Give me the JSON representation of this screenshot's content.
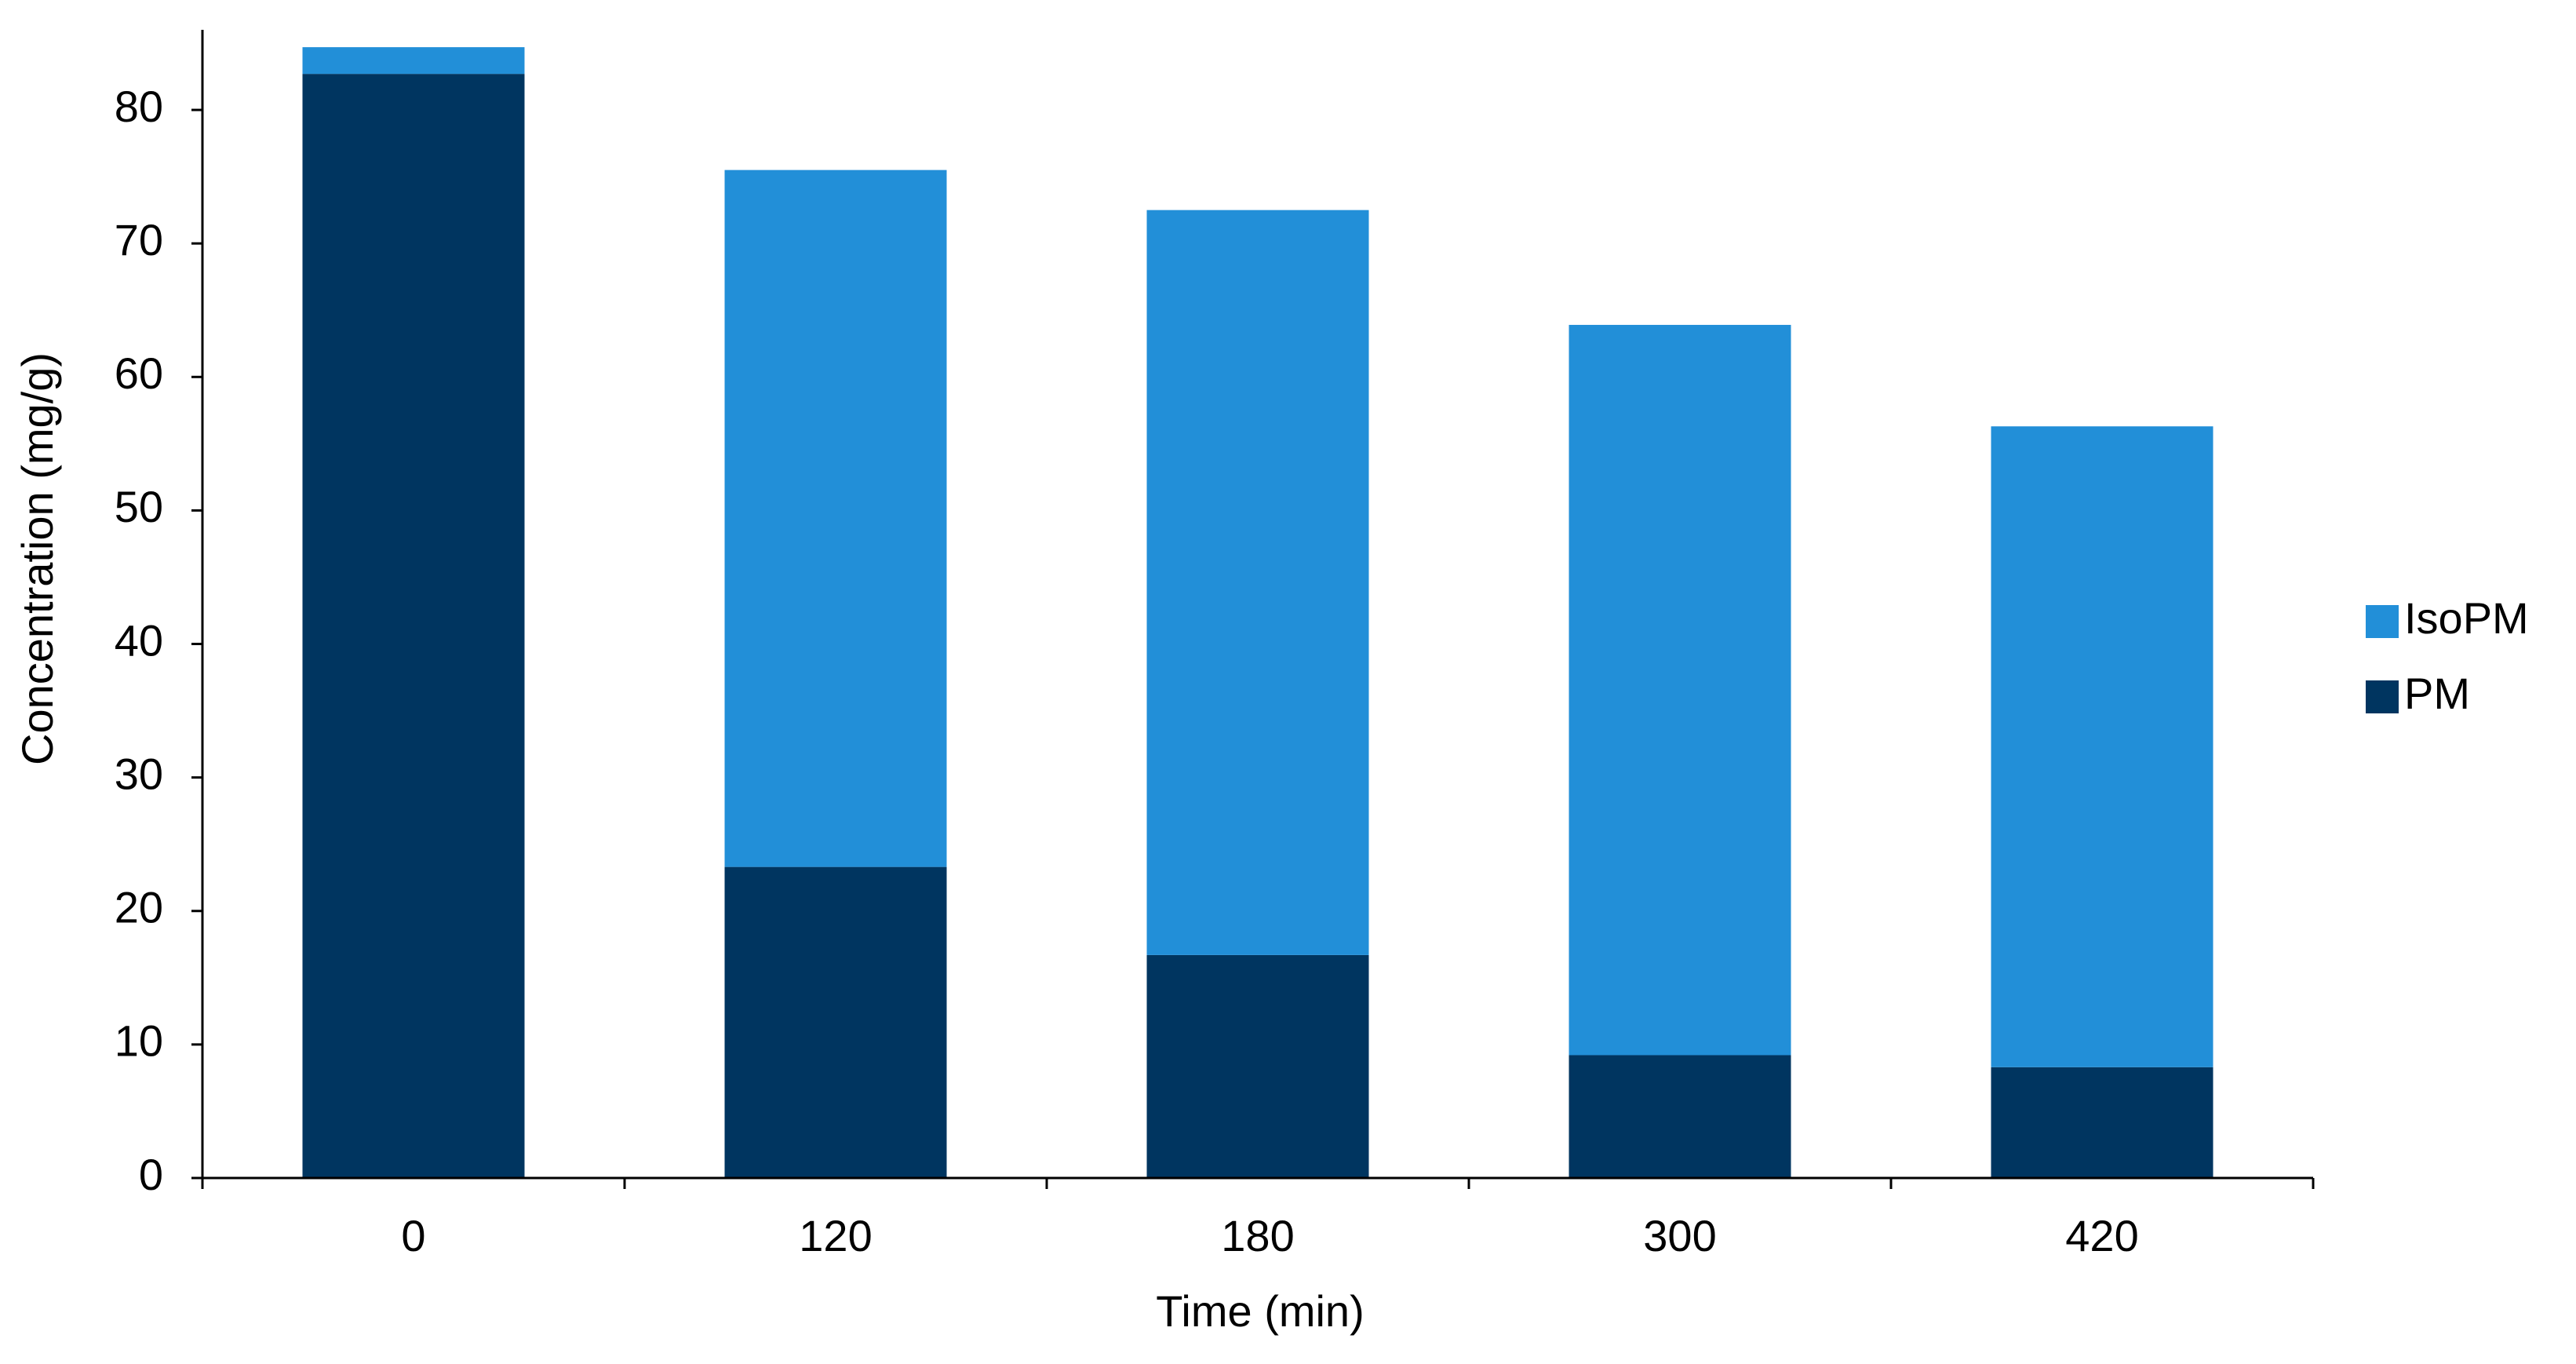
{
  "chart_data": {
    "type": "stacked-bar",
    "xlabel": "Time (min)",
    "ylabel": "Concentration (mg/g)",
    "categories": [
      "0",
      "120",
      "180",
      "300",
      "420"
    ],
    "series": [
      {
        "name": "PM",
        "color": "#003560",
        "values": [
          82.7,
          23.3,
          16.7,
          9.2,
          8.3
        ]
      },
      {
        "name": "IsoPM",
        "color": "#228fd8",
        "values": [
          2.0,
          52.2,
          55.8,
          54.7,
          48.0
        ]
      }
    ],
    "ylim": [
      0,
      86
    ],
    "yticks": [
      0,
      10,
      20,
      30,
      40,
      50,
      60,
      70,
      80
    ],
    "grid": false,
    "legend": "right"
  }
}
